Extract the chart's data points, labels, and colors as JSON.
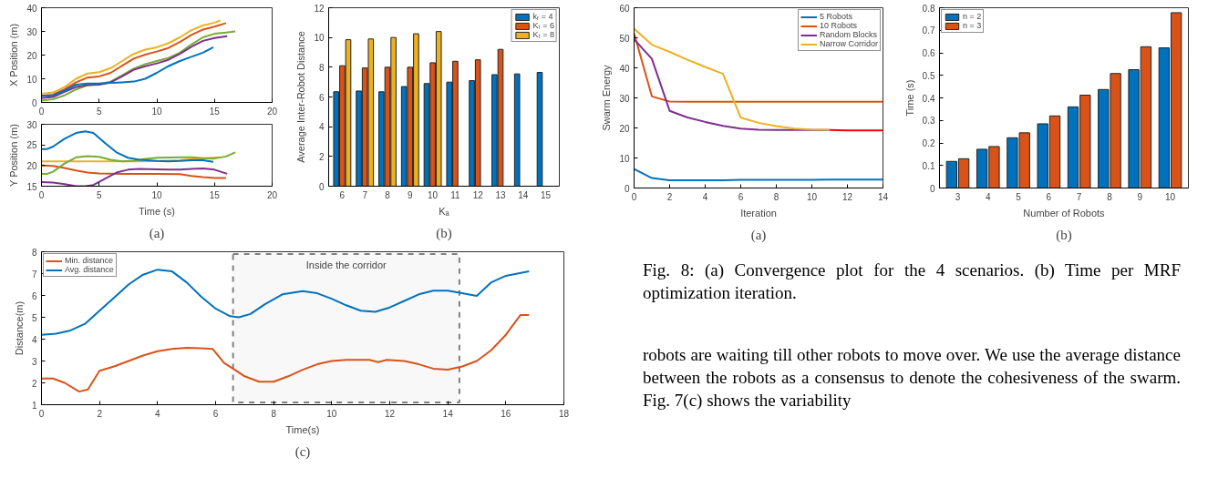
{
  "chart_data": [
    {
      "type": "line",
      "ylabel": "X Position (m)",
      "xlim": [
        0,
        20
      ],
      "xticks": [
        0,
        5,
        10,
        15,
        20
      ],
      "ylim": [
        0,
        40
      ],
      "yticks": [
        0,
        10,
        20,
        30,
        40
      ],
      "grid": false,
      "legend": false,
      "series": [
        {
          "color": "#edb120",
          "x": [
            0,
            1,
            2,
            3,
            4,
            5,
            6,
            7,
            8,
            9,
            10,
            11,
            12,
            13,
            14,
            15,
            15.5
          ],
          "values": [
            3.7,
            4.2,
            6.5,
            10,
            12.2,
            12.8,
            14.5,
            17.5,
            20.5,
            22.3,
            23.3,
            25,
            27.5,
            30.5,
            32.5,
            33.7,
            34.6
          ]
        },
        {
          "color": "#d95319",
          "x": [
            0,
            1,
            2,
            3,
            4,
            5,
            6,
            7,
            8,
            9,
            10,
            11,
            12,
            13,
            14,
            15,
            16
          ],
          "values": [
            2.8,
            3.3,
            5.5,
            8.5,
            10.5,
            11,
            12.5,
            15.5,
            18.5,
            20.2,
            21.5,
            23,
            25.5,
            28.5,
            30.8,
            32,
            33.5
          ]
        },
        {
          "color": "#77ac30",
          "x": [
            0,
            1,
            2,
            3,
            4,
            5,
            6,
            7,
            8,
            9,
            10,
            11,
            12,
            13,
            14,
            15,
            16,
            16.8
          ],
          "values": [
            0.8,
            1.3,
            3,
            5.5,
            7.3,
            7.8,
            8.8,
            11.5,
            14.3,
            16.2,
            17.5,
            18.8,
            21,
            24.5,
            27.5,
            29,
            29.5,
            30
          ]
        },
        {
          "color": "#7e2f8e",
          "x": [
            0,
            1,
            2,
            3,
            4,
            5,
            6,
            7,
            8,
            9,
            10,
            11,
            12,
            13,
            14,
            15,
            16.1
          ],
          "values": [
            1.8,
            2.3,
            4.5,
            6.5,
            7.3,
            7.5,
            8.5,
            11,
            13.8,
            15.3,
            16.5,
            18,
            20.5,
            23.5,
            26,
            27.2,
            28
          ]
        },
        {
          "color": "#0072bd",
          "x": [
            0,
            1,
            2,
            3,
            4,
            5,
            6,
            7,
            8,
            9,
            10,
            11,
            12,
            13,
            14,
            14.9
          ],
          "values": [
            2.8,
            3,
            5,
            7.5,
            8,
            8,
            8.3,
            8.5,
            8.8,
            10,
            12.5,
            15.3,
            17.5,
            19.3,
            21,
            23.3
          ]
        }
      ]
    },
    {
      "type": "line",
      "xlabel": "Time (s)",
      "ylabel": "Y Position (m)",
      "xlim": [
        0,
        20
      ],
      "xticks": [
        0,
        5,
        10,
        15,
        20
      ],
      "ylim": [
        15,
        30
      ],
      "yticks": [
        15,
        20,
        25,
        30
      ],
      "grid": false,
      "legend": false,
      "annotations": [
        "(a)"
      ],
      "series": [
        {
          "color": "#edb120",
          "x": [
            0,
            3,
            6,
            9,
            12,
            14,
            15.5
          ],
          "values": [
            21,
            21,
            21,
            21,
            21.3,
            21.8,
            22
          ]
        },
        {
          "color": "#d95319",
          "x": [
            0,
            1,
            2,
            3,
            4,
            5,
            7,
            10,
            12,
            13,
            14,
            15,
            16
          ],
          "values": [
            20,
            19.9,
            19.4,
            18.8,
            18.3,
            18.1,
            18,
            18,
            17.9,
            17.5,
            17.2,
            17,
            17
          ]
        },
        {
          "color": "#77ac30",
          "x": [
            0,
            0.5,
            1,
            2,
            3,
            4,
            5,
            6,
            7,
            8,
            9,
            10,
            12,
            13,
            14,
            15,
            16,
            16.8
          ],
          "values": [
            18,
            18,
            18.5,
            20.5,
            22,
            22.3,
            22.1,
            21.4,
            21,
            21.2,
            21.6,
            21.9,
            22,
            22,
            21.8,
            21.7,
            22.2,
            23.2
          ]
        },
        {
          "color": "#7e2f8e",
          "x": [
            0,
            1,
            2,
            3,
            3.8,
            4.5,
            5.5,
            6.5,
            7.5,
            8.5,
            10,
            11,
            12,
            13,
            14,
            15,
            16.1
          ],
          "values": [
            16,
            15.9,
            15.5,
            15,
            15,
            15.3,
            16.8,
            18.3,
            19,
            19.2,
            19.1,
            19,
            19,
            19.2,
            19.3,
            19,
            18
          ]
        },
        {
          "color": "#0072bd",
          "x": [
            0,
            0.5,
            1,
            2,
            3,
            3.8,
            4.5,
            5.5,
            6.5,
            7.5,
            8.5,
            10,
            11,
            12,
            13,
            14,
            14.9
          ],
          "values": [
            24,
            24,
            24.6,
            26.5,
            27.9,
            28.3,
            27.9,
            25.5,
            23.2,
            21.9,
            21.4,
            21.1,
            21,
            21.1,
            21.3,
            21.3,
            20.9
          ]
        }
      ]
    },
    {
      "type": "bar",
      "xlabel": "Kₐ",
      "ylabel": "Average Inter-Robot Distance",
      "categories": [
        "6",
        "7",
        "8",
        "9",
        "10",
        "11",
        "12",
        "13",
        "14",
        "15"
      ],
      "ylim": [
        0,
        12
      ],
      "yticks": [
        0,
        2,
        4,
        6,
        8,
        10,
        12
      ],
      "grid": false,
      "legend": "top right",
      "annotations": [
        "(b)"
      ],
      "series": [
        {
          "name": "kᵣ = 4",
          "color": "#0072bd",
          "values": [
            6.35,
            6.4,
            6.35,
            6.7,
            6.9,
            7.0,
            7.1,
            7.5,
            7.55,
            7.65
          ]
        },
        {
          "name": "Kᵣ = 6",
          "color": "#d95319",
          "values": [
            8.1,
            7.95,
            8.0,
            8.0,
            8.3,
            8.4,
            8.5,
            9.2,
            null,
            null
          ]
        },
        {
          "name": "Kᵣ = 8",
          "color": "#edb120",
          "values": [
            9.85,
            9.9,
            10.0,
            10.25,
            10.4,
            null,
            null,
            null,
            null,
            null
          ]
        }
      ]
    },
    {
      "type": "line",
      "xlabel": "Time(s)",
      "ylabel": "Distance(m)",
      "xlim": [
        0,
        18
      ],
      "xticks": [
        0,
        2,
        4,
        6,
        8,
        10,
        12,
        14,
        16,
        18
      ],
      "ylim": [
        1,
        8
      ],
      "yticks": [
        1,
        2,
        3,
        4,
        5,
        6,
        7,
        8
      ],
      "grid": false,
      "legend": "top left",
      "annotations": [
        "(c)"
      ],
      "bands": [
        {
          "axis": "x",
          "from": 6.6,
          "to": 14.4,
          "label": "Inside the corridor",
          "color": "#808080"
        }
      ],
      "series": [
        {
          "name": "Min. distance",
          "color": "#d95319",
          "x": [
            0,
            0.4,
            0.8,
            1.3,
            1.6,
            2,
            2.5,
            3,
            3.5,
            4,
            4.5,
            5,
            5.5,
            5.9,
            6.3,
            6.6,
            7,
            7.5,
            8,
            8.5,
            9,
            9.5,
            10,
            10.5,
            11.3,
            11.6,
            11.9,
            12.5,
            13,
            13.5,
            14,
            14.5,
            15,
            15.5,
            16,
            16.5,
            16.8
          ],
          "values": [
            2.2,
            2.2,
            2.0,
            1.6,
            1.7,
            2.55,
            2.75,
            3.0,
            3.25,
            3.45,
            3.55,
            3.6,
            3.58,
            3.55,
            2.9,
            2.65,
            2.3,
            2.05,
            2.05,
            2.3,
            2.6,
            2.85,
            3.0,
            3.05,
            3.05,
            2.95,
            3.05,
            3.0,
            2.85,
            2.65,
            2.6,
            2.75,
            3.0,
            3.5,
            4.2,
            5.1,
            5.1
          ]
        },
        {
          "name": "Avg. distance",
          "color": "#0072bd",
          "x": [
            0,
            0.5,
            1,
            1.5,
            2,
            2.5,
            3,
            3.5,
            4,
            4.5,
            5,
            5.5,
            6,
            6.5,
            6.8,
            7.2,
            7.7,
            8.3,
            9,
            9.5,
            10,
            10.5,
            11,
            11.5,
            12,
            12.5,
            13,
            13.5,
            14,
            14.5,
            15,
            15.5,
            16,
            16.8
          ],
          "values": [
            4.2,
            4.25,
            4.4,
            4.7,
            5.3,
            5.9,
            6.5,
            6.95,
            7.18,
            7.1,
            6.6,
            5.95,
            5.4,
            5.05,
            5.0,
            5.15,
            5.6,
            6.05,
            6.2,
            6.1,
            5.85,
            5.55,
            5.3,
            5.25,
            5.45,
            5.75,
            6.05,
            6.22,
            6.22,
            6.1,
            5.98,
            6.6,
            6.9,
            7.1
          ]
        }
      ]
    },
    {
      "type": "line",
      "xlabel": "Iteration",
      "ylabel": "Swarm Energy",
      "xlim": [
        0,
        14
      ],
      "xticks": [
        0,
        2,
        4,
        6,
        8,
        10,
        12,
        14
      ],
      "ylim": [
        0,
        60
      ],
      "yticks": [
        0,
        10,
        20,
        30,
        40,
        50,
        60
      ],
      "grid": false,
      "legend": "top right",
      "annotations": [
        "(a)"
      ],
      "series": [
        {
          "name": "5 Robots",
          "color": "#0072bd",
          "x": [
            0,
            1,
            2,
            3,
            4,
            5,
            6,
            7,
            8,
            9,
            10,
            11,
            12,
            13,
            14
          ],
          "values": [
            6.3,
            3.3,
            2.6,
            2.6,
            2.6,
            2.6,
            2.7,
            2.7,
            2.7,
            2.7,
            2.7,
            2.8,
            2.8,
            2.8,
            2.8
          ]
        },
        {
          "name": "10 Robots",
          "color": "#d95319",
          "x": [
            0,
            1,
            2,
            3,
            4,
            5,
            6,
            7,
            8,
            9,
            10,
            11,
            12,
            13,
            14
          ],
          "values": [
            51.5,
            30.5,
            28.8,
            28.7,
            28.7,
            28.7,
            28.7,
            28.7,
            28.7,
            28.7,
            28.7,
            28.7,
            28.7,
            28.7,
            28.7
          ]
        },
        {
          "name": "Random Blocks",
          "color": "#7e2f8e",
          "x": [
            0,
            1,
            2,
            3,
            4,
            5,
            6,
            7,
            8,
            9,
            10,
            11
          ],
          "values": [
            49.5,
            43,
            25.7,
            23.5,
            22,
            20.7,
            19.8,
            19.4,
            19.3,
            19.3,
            19.3,
            19.3
          ]
        },
        {
          "name": "Narrow Corridor",
          "color": "#edb120",
          "x": [
            0,
            1,
            2,
            3,
            4,
            5,
            6,
            7,
            8,
            9,
            10,
            11
          ],
          "values": [
            53,
            47.7,
            45.3,
            42.7,
            40.3,
            38,
            23.4,
            21.7,
            20.6,
            19.8,
            19.5,
            19.4
          ]
        },
        {
          "color": "#ff0000",
          "x": [
            11,
            12,
            13,
            14
          ],
          "values": [
            19.3,
            19.2,
            19.2,
            19.2
          ]
        }
      ]
    },
    {
      "type": "bar",
      "xlabel": "Number of Robots",
      "ylabel": "Time (s)",
      "categories": [
        "3",
        "4",
        "5",
        "6",
        "7",
        "8",
        "9",
        "10"
      ],
      "ylim": [
        0,
        0.8
      ],
      "yticks": [
        0,
        0.1,
        0.2,
        0.3,
        0.4,
        0.5,
        0.6,
        0.7,
        0.8
      ],
      "grid": false,
      "legend": "top left",
      "annotations": [
        "(b)"
      ],
      "series": [
        {
          "name": "n = 2",
          "color": "#0072bd",
          "values": [
            0.118,
            0.172,
            0.223,
            0.285,
            0.36,
            0.437,
            0.525,
            0.622
          ]
        },
        {
          "name": "n = 3",
          "color": "#d95319",
          "values": [
            0.13,
            0.184,
            0.245,
            0.32,
            0.412,
            0.508,
            0.627,
            0.778
          ]
        }
      ]
    },
    {
      "type": "other",
      "annotations": [
        "Fig. 8: (a) Convergence plot for the 4 scenarios. (b) Time per MRF optimization iteration.",
        "robots are waiting till other robots to move over. We use the average distance between the robots as a consensus to denote the cohesiveness of the swarm. Fig. 7(c) shows the variability"
      ]
    }
  ]
}
